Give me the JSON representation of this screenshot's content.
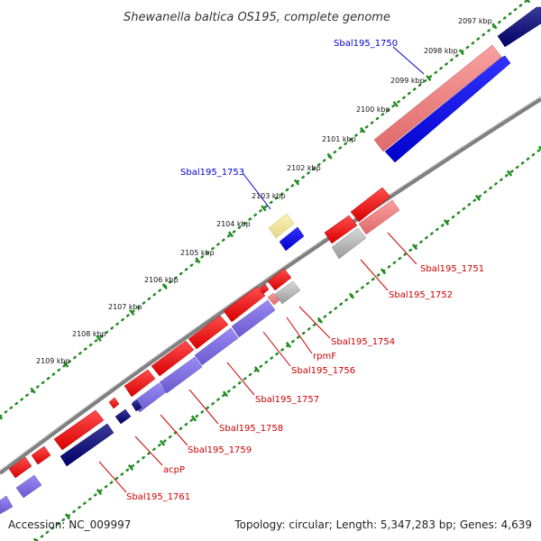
{
  "title": "Shewanella baltica OS195, complete genome",
  "footer": {
    "accession": "Accession: NC_009997",
    "summary": "Topology: circular; Length: 5,347,283 bp; Genes: 4,639"
  },
  "ticks": [
    "2097 kbp",
    "2098 kbp",
    "2099 kbp",
    "2100 kbp",
    "2101 kbp",
    "2102 kbp",
    "2103 kbp",
    "2104 kbp",
    "2105 kbp",
    "2106 kbp",
    "2107 kbp",
    "2108 kbp",
    "2109 kbp"
  ],
  "gene_labels": {
    "sbal195_1750": "Sbal195_1750",
    "sbal195_1753": "Sbal195_1753",
    "sbal195_1751": "Sbal195_1751",
    "sbal195_1752": "Sbal195_1752",
    "sbal195_1754": "Sbal195_1754",
    "rpmf": "rpmF",
    "sbal195_1756": "Sbal195_1756",
    "sbal195_1757": "Sbal195_1757",
    "sbal195_1758": "Sbal195_1758",
    "sbal195_1759": "Sbal195_1759",
    "acpp": "acpP",
    "sbal195_1761": "Sbal195_1761"
  },
  "colors": {
    "forward_cds": "#ff0000",
    "forward_cds_light": "#f08080",
    "reverse_cds": "#0000ff",
    "reverse_cds_light": "#7b68ee",
    "reverse_cds_dark": "#000080",
    "hypothetical": "#f0e68c",
    "other": "#b0b0b0",
    "backbone": "#808080",
    "tick": "#228b22",
    "label_blue": "#0000cc",
    "label_red": "#cc0000"
  }
}
